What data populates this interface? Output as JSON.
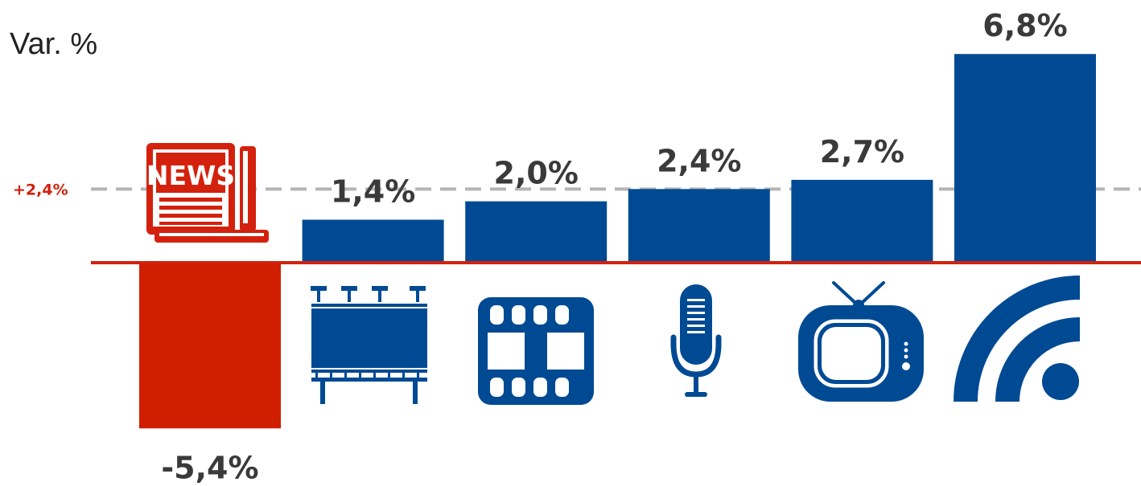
{
  "chart_data": {
    "type": "bar",
    "ylabel": "Var. %",
    "categories": [
      "newspaper",
      "billboard",
      "cinema",
      "radio",
      "tv",
      "internet"
    ],
    "values": [
      -5.4,
      1.4,
      2.0,
      2.4,
      2.7,
      6.8
    ],
    "value_labels": [
      "-5,4%",
      "1,4%",
      "2,0%",
      "2,4%",
      "2,7%",
      "6,8%"
    ],
    "reference_line": {
      "value": 2.4,
      "label": "+2,4%"
    },
    "colors": {
      "positive": "#004a94",
      "negative": "#d01f00",
      "baseline": "#d3210d",
      "reference": "#b5b5b5",
      "label": "#3a3a3a"
    },
    "icons": [
      "newspaper-icon",
      "billboard-icon",
      "film-strip-icon",
      "microphone-icon",
      "television-icon",
      "wifi-signal-icon"
    ],
    "news_logo_text": "NEWS"
  }
}
